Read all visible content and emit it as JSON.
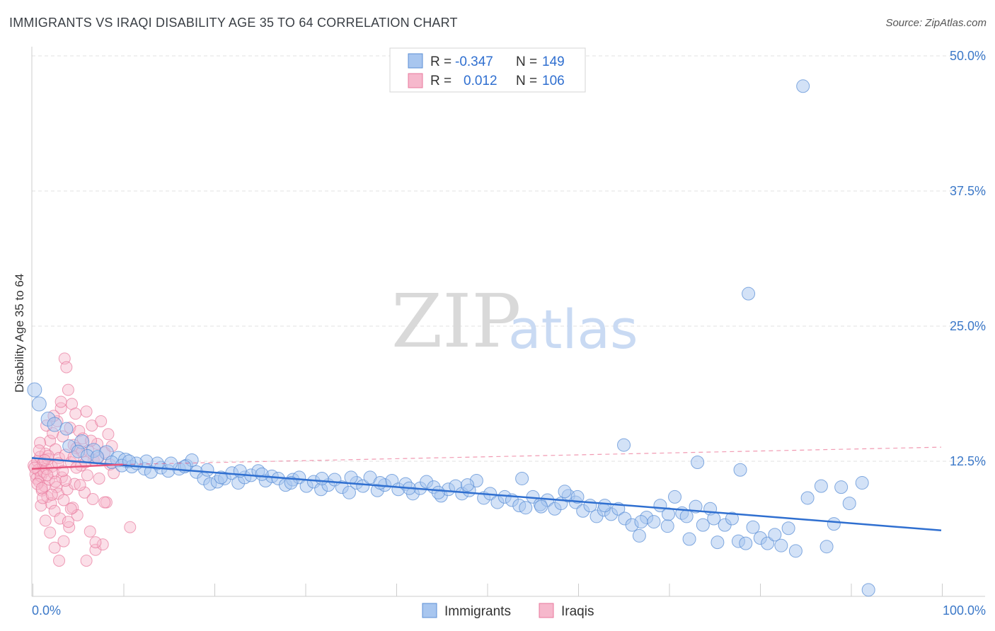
{
  "title": "IMMIGRANTS VS IRAQI DISABILITY AGE 35 TO 64 CORRELATION CHART",
  "source": "Source: ZipAtlas.com",
  "watermark": {
    "zip": "ZIP",
    "atlas": "atlas"
  },
  "legend": {
    "rows": [
      {
        "r_label": "R = ",
        "r_value": "-0.347",
        "n_label": "N = ",
        "n_value": "149"
      },
      {
        "r_label": "R = ",
        "r_value": "0.012",
        "n_label": "N = ",
        "n_value": "106"
      }
    ]
  },
  "bottom_legend": [
    "Immigrants",
    "Iraqis"
  ],
  "colors": {
    "blue_fill": "#a8c6ef",
    "blue_stroke": "#5b8fd6",
    "blue_line": "#2f6fd0",
    "pink_fill": "#f6b8cc",
    "pink_stroke": "#e8799d",
    "pink_line": "#e8577f",
    "grid": "#e0e0e0",
    "tick_text": "#3b78c8"
  },
  "chart_data": {
    "type": "scatter",
    "title": "IMMIGRANTS VS IRAQI DISABILITY AGE 35 TO 64 CORRELATION CHART",
    "xlabel": "",
    "ylabel": "Disability Age 35 to 64",
    "xlim": [
      0,
      100
    ],
    "ylim": [
      0,
      50
    ],
    "x_tick_labels": [
      "0.0%",
      "100.0%"
    ],
    "y_ticks": [
      12.5,
      25.0,
      37.5,
      50.0
    ],
    "y_tick_labels": [
      "12.5%",
      "25.0%",
      "37.5%",
      "50.0%"
    ],
    "grid": "horizontal dashed",
    "series": [
      {
        "name": "Immigrants",
        "r": -0.347,
        "n": 149,
        "trend": {
          "x": [
            0,
            100
          ],
          "y": [
            12.8,
            6.1
          ]
        },
        "points": [
          [
            0.3,
            19.1,
            10
          ],
          [
            0.8,
            17.8,
            10
          ],
          [
            1.8,
            16.4,
            10
          ],
          [
            2.5,
            15.9,
            10
          ],
          [
            3.8,
            15.5,
            9
          ],
          [
            5.5,
            14.3,
            10
          ],
          [
            6.8,
            13.5,
            10
          ],
          [
            8.2,
            13.3,
            10
          ],
          [
            9.5,
            12.7,
            11
          ],
          [
            10.3,
            12.6,
            10
          ],
          [
            4.1,
            13.9,
            9
          ],
          [
            5.1,
            13.4,
            9
          ],
          [
            6.1,
            13.0,
            9
          ],
          [
            7.2,
            12.9,
            9
          ],
          [
            8.8,
            12.4,
            9
          ],
          [
            9.9,
            12.1,
            9
          ],
          [
            11.0,
            12.0,
            9
          ],
          [
            12.4,
            11.8,
            9
          ],
          [
            13.1,
            11.5,
            9
          ],
          [
            14.2,
            11.9,
            9
          ],
          [
            15.0,
            11.6,
            9
          ],
          [
            16.2,
            11.8,
            9
          ],
          [
            17.0,
            12.1,
            9
          ],
          [
            17.6,
            12.6,
            9
          ],
          [
            18.1,
            11.5,
            9
          ],
          [
            18.9,
            10.9,
            9
          ],
          [
            19.6,
            10.4,
            9
          ],
          [
            20.4,
            10.6,
            9
          ],
          [
            21.2,
            10.9,
            9
          ],
          [
            22.0,
            11.4,
            9
          ],
          [
            22.7,
            10.5,
            9
          ],
          [
            23.4,
            11.0,
            9
          ],
          [
            24.1,
            11.2,
            9
          ],
          [
            24.9,
            11.6,
            9
          ],
          [
            25.7,
            10.7,
            9
          ],
          [
            26.4,
            11.1,
            9
          ],
          [
            27.1,
            10.9,
            9
          ],
          [
            27.9,
            10.3,
            9
          ],
          [
            28.7,
            10.8,
            9
          ],
          [
            29.4,
            11.0,
            9
          ],
          [
            30.2,
            10.2,
            9
          ],
          [
            31.0,
            10.6,
            9
          ],
          [
            31.8,
            9.9,
            9
          ],
          [
            32.6,
            10.3,
            9
          ],
          [
            33.3,
            10.8,
            9
          ],
          [
            34.1,
            10.1,
            9
          ],
          [
            34.9,
            9.6,
            9
          ],
          [
            35.7,
            10.5,
            9
          ],
          [
            36.4,
            10.2,
            9
          ],
          [
            37.2,
            11.0,
            9
          ],
          [
            38.0,
            9.8,
            9
          ],
          [
            38.8,
            10.3,
            9
          ],
          [
            39.6,
            10.7,
            9
          ],
          [
            40.3,
            9.9,
            9
          ],
          [
            41.1,
            10.4,
            9
          ],
          [
            41.9,
            9.5,
            9
          ],
          [
            42.7,
            10.0,
            9
          ],
          [
            43.4,
            10.6,
            9
          ],
          [
            44.2,
            10.1,
            9
          ],
          [
            45.0,
            9.3,
            9
          ],
          [
            45.8,
            9.9,
            9
          ],
          [
            46.6,
            10.2,
            9
          ],
          [
            47.3,
            9.5,
            9
          ],
          [
            48.1,
            9.8,
            9
          ],
          [
            48.9,
            10.7,
            9
          ],
          [
            49.7,
            9.1,
            9
          ],
          [
            50.4,
            9.5,
            9
          ],
          [
            51.2,
            8.7,
            9
          ],
          [
            52.0,
            9.2,
            9
          ],
          [
            52.8,
            8.9,
            9
          ],
          [
            53.6,
            8.4,
            9
          ],
          [
            54.3,
            8.2,
            9
          ],
          [
            55.1,
            9.2,
            9
          ],
          [
            55.9,
            8.5,
            9
          ],
          [
            56.7,
            8.9,
            9
          ],
          [
            57.5,
            8.1,
            9
          ],
          [
            58.2,
            8.6,
            9
          ],
          [
            59.0,
            9.3,
            9
          ],
          [
            59.8,
            8.7,
            9
          ],
          [
            60.6,
            7.9,
            9
          ],
          [
            61.4,
            8.4,
            9
          ],
          [
            62.1,
            7.4,
            9
          ],
          [
            62.9,
            8.0,
            9
          ],
          [
            63.7,
            7.6,
            9
          ],
          [
            64.5,
            8.1,
            9
          ],
          [
            65.2,
            7.2,
            9
          ],
          [
            66.0,
            6.6,
            9
          ],
          [
            66.8,
            5.6,
            9
          ],
          [
            67.6,
            7.3,
            9
          ],
          [
            68.4,
            6.9,
            9
          ],
          [
            69.1,
            8.4,
            9
          ],
          [
            69.9,
            6.5,
            9
          ],
          [
            70.7,
            9.2,
            9
          ],
          [
            71.5,
            7.7,
            9
          ],
          [
            72.3,
            5.3,
            9
          ],
          [
            73.0,
            8.3,
            9
          ],
          [
            73.8,
            6.6,
            9
          ],
          [
            74.6,
            8.1,
            9
          ],
          [
            75.4,
            5.0,
            9
          ],
          [
            76.2,
            6.6,
            9
          ],
          [
            77.0,
            7.2,
            9
          ],
          [
            77.7,
            5.1,
            9
          ],
          [
            78.5,
            4.9,
            9
          ],
          [
            79.3,
            6.4,
            9
          ],
          [
            80.1,
            5.4,
            9
          ],
          [
            80.9,
            4.9,
            9
          ],
          [
            81.7,
            5.7,
            9
          ],
          [
            82.4,
            4.7,
            9
          ],
          [
            83.2,
            6.3,
            9
          ],
          [
            84.0,
            4.2,
            9
          ],
          [
            85.3,
            9.1,
            9
          ],
          [
            86.8,
            10.2,
            9
          ],
          [
            87.4,
            4.6,
            9
          ],
          [
            88.2,
            6.7,
            9
          ],
          [
            89.0,
            10.1,
            9
          ],
          [
            89.9,
            8.6,
            9
          ],
          [
            91.3,
            10.5,
            9
          ],
          [
            92.0,
            0.6,
            9
          ],
          [
            78.8,
            28.0,
            9
          ],
          [
            84.8,
            47.2,
            9
          ],
          [
            65.1,
            14.0,
            9
          ],
          [
            73.2,
            12.4,
            9
          ],
          [
            77.9,
            11.7,
            9
          ],
          [
            58.6,
            9.7,
            9
          ],
          [
            53.9,
            10.9,
            9
          ],
          [
            47.9,
            10.3,
            9
          ],
          [
            44.7,
            9.6,
            9
          ],
          [
            41.5,
            10.0,
            9
          ],
          [
            38.3,
            10.5,
            9
          ],
          [
            35.1,
            11.0,
            9
          ],
          [
            31.9,
            10.9,
            9
          ],
          [
            28.5,
            10.5,
            9
          ],
          [
            25.3,
            11.3,
            9
          ],
          [
            22.9,
            11.6,
            9
          ],
          [
            20.8,
            11.0,
            9
          ],
          [
            19.3,
            11.7,
            9
          ],
          [
            16.8,
            12.0,
            9
          ],
          [
            15.3,
            12.3,
            9
          ],
          [
            13.8,
            12.3,
            9
          ],
          [
            12.6,
            12.5,
            9
          ],
          [
            11.5,
            12.3,
            9
          ],
          [
            10.7,
            12.5,
            9
          ],
          [
            56.0,
            8.3,
            9
          ],
          [
            60.0,
            9.2,
            9
          ],
          [
            63.0,
            8.4,
            9
          ],
          [
            67.0,
            6.9,
            9
          ],
          [
            70.0,
            7.6,
            9
          ],
          [
            72.0,
            7.4,
            9
          ],
          [
            75.0,
            7.2,
            9
          ]
        ]
      },
      {
        "name": "Iraqis",
        "r": 0.012,
        "n": 106,
        "trend": {
          "x": [
            0,
            10
          ],
          "y": [
            11.8,
            12.2
          ]
        },
        "trend_dashed": {
          "x": [
            10,
            100
          ],
          "y": [
            12.2,
            13.8
          ]
        },
        "points": [
          [
            0.2,
            12.1
          ],
          [
            0.4,
            11.3
          ],
          [
            0.5,
            10.9
          ],
          [
            0.6,
            12.5
          ],
          [
            0.7,
            11.7
          ],
          [
            0.8,
            10.6
          ],
          [
            0.9,
            12.9
          ],
          [
            1.0,
            11.1
          ],
          [
            1.1,
            9.8
          ],
          [
            1.2,
            12.3
          ],
          [
            1.3,
            11.5
          ],
          [
            1.4,
            10.2
          ],
          [
            1.5,
            13.2
          ],
          [
            1.6,
            11.8
          ],
          [
            1.7,
            9.2
          ],
          [
            1.8,
            12.7
          ],
          [
            1.9,
            10.8
          ],
          [
            2.0,
            14.4
          ],
          [
            2.1,
            8.6
          ],
          [
            2.2,
            12.0
          ],
          [
            2.3,
            15.1
          ],
          [
            2.4,
            11.4
          ],
          [
            2.5,
            7.9
          ],
          [
            2.6,
            13.6
          ],
          [
            2.7,
            10.1
          ],
          [
            2.8,
            16.2
          ],
          [
            2.9,
            9.5
          ],
          [
            3.0,
            12.8
          ],
          [
            3.1,
            7.2
          ],
          [
            3.2,
            17.4
          ],
          [
            3.3,
            11.0
          ],
          [
            3.4,
            14.8
          ],
          [
            3.5,
            8.9
          ],
          [
            3.6,
            22.0
          ],
          [
            3.7,
            13.1
          ],
          [
            3.8,
            21.2
          ],
          [
            3.9,
            9.9
          ],
          [
            4.0,
            19.1
          ],
          [
            4.1,
            6.4
          ],
          [
            4.2,
            15.6
          ],
          [
            4.3,
            12.4
          ],
          [
            4.4,
            17.8
          ],
          [
            4.5,
            8.2
          ],
          [
            4.6,
            14.0
          ],
          [
            4.7,
            10.4
          ],
          [
            4.8,
            16.9
          ],
          [
            4.9,
            13.7
          ],
          [
            5.0,
            7.5
          ],
          [
            5.2,
            15.3
          ],
          [
            5.4,
            12.1
          ],
          [
            5.6,
            14.6
          ],
          [
            5.8,
            9.6
          ],
          [
            6.0,
            17.1
          ],
          [
            6.2,
            13.5
          ],
          [
            6.4,
            6.0
          ],
          [
            6.6,
            15.8
          ],
          [
            6.8,
            12.6
          ],
          [
            7.0,
            4.3
          ],
          [
            7.2,
            14.1
          ],
          [
            7.4,
            10.9
          ],
          [
            7.6,
            16.2
          ],
          [
            7.8,
            4.8
          ],
          [
            8.0,
            13.3
          ],
          [
            8.2,
            8.7
          ],
          [
            8.4,
            15.0
          ],
          [
            8.6,
            12.2
          ],
          [
            8.8,
            13.9
          ],
          [
            9.0,
            11.4
          ],
          [
            1.0,
            8.4
          ],
          [
            1.5,
            7.0
          ],
          [
            2.0,
            5.9
          ],
          [
            2.5,
            4.5
          ],
          [
            3.0,
            3.3
          ],
          [
            3.5,
            5.1
          ],
          [
            4.0,
            6.9
          ],
          [
            6.0,
            3.3
          ],
          [
            7.0,
            5.0
          ],
          [
            8.0,
            8.7
          ],
          [
            10.8,
            6.4
          ],
          [
            1.2,
            9.1
          ],
          [
            1.8,
            13.0
          ],
          [
            2.4,
            16.7
          ],
          [
            3.2,
            18.0
          ],
          [
            0.9,
            14.2
          ],
          [
            1.6,
            15.8
          ],
          [
            2.9,
            12.3
          ],
          [
            3.7,
            10.7
          ],
          [
            4.3,
            8.1
          ],
          [
            4.9,
            11.9
          ],
          [
            5.5,
            13.4
          ],
          [
            6.1,
            11.2
          ],
          [
            6.7,
            9.0
          ],
          [
            7.3,
            12.8
          ],
          [
            0.3,
            11.9
          ],
          [
            0.6,
            10.4
          ],
          [
            0.8,
            13.5
          ],
          [
            1.1,
            10.0
          ],
          [
            1.4,
            12.6
          ],
          [
            1.7,
            11.2
          ],
          [
            2.2,
            9.4
          ],
          [
            2.6,
            10.6
          ],
          [
            3.4,
            11.6
          ],
          [
            4.6,
            12.9
          ],
          [
            5.3,
            10.3
          ],
          [
            5.9,
            12.4
          ],
          [
            6.5,
            14.4
          ]
        ]
      }
    ]
  }
}
